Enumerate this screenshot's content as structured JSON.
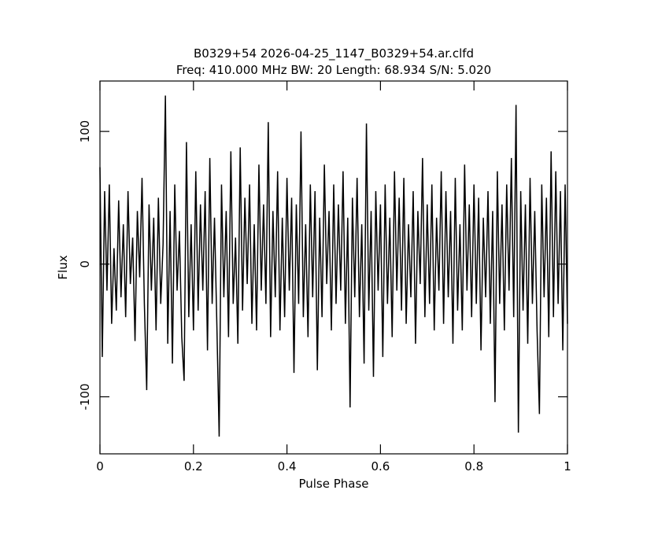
{
  "chart_data": {
    "type": "line",
    "title": "B0329+54 2026-04-25_1147_B0329+54.ar.clfd",
    "subtitle": "Freq: 410.000 MHz BW: 20 Length: 68.934 S/N: 5.020",
    "x_label": "Pulse Phase",
    "y_label": "Flux",
    "xlim": [
      0,
      1
    ],
    "xticks": [
      0,
      0.2,
      0.4,
      0.6,
      0.8,
      1
    ],
    "ylim": [
      -143,
      138
    ],
    "yticks": [
      -100,
      0,
      100
    ],
    "x": [
      0,
      0.005,
      0.01,
      0.015,
      0.02,
      0.025,
      0.03,
      0.035,
      0.04,
      0.045,
      0.05,
      0.055,
      0.06,
      0.065,
      0.07,
      0.075,
      0.08,
      0.085,
      0.09,
      0.095,
      0.1,
      0.105,
      0.11,
      0.115,
      0.12,
      0.125,
      0.13,
      0.135,
      0.14,
      0.145,
      0.15,
      0.155,
      0.16,
      0.165,
      0.17,
      0.175,
      0.18,
      0.185,
      0.19,
      0.195,
      0.2,
      0.205,
      0.21,
      0.215,
      0.22,
      0.225,
      0.23,
      0.235,
      0.24,
      0.245,
      0.25,
      0.255,
      0.26,
      0.265,
      0.27,
      0.275,
      0.28,
      0.285,
      0.29,
      0.295,
      0.3,
      0.305,
      0.31,
      0.315,
      0.32,
      0.325,
      0.33,
      0.335,
      0.34,
      0.345,
      0.35,
      0.355,
      0.36,
      0.365,
      0.37,
      0.375,
      0.38,
      0.385,
      0.39,
      0.395,
      0.4,
      0.405,
      0.41,
      0.415,
      0.42,
      0.425,
      0.43,
      0.435,
      0.44,
      0.445,
      0.45,
      0.455,
      0.46,
      0.465,
      0.47,
      0.475,
      0.48,
      0.485,
      0.49,
      0.495,
      0.5,
      0.505,
      0.51,
      0.515,
      0.52,
      0.525,
      0.53,
      0.535,
      0.54,
      0.545,
      0.55,
      0.555,
      0.56,
      0.565,
      0.57,
      0.575,
      0.58,
      0.585,
      0.59,
      0.595,
      0.6,
      0.605,
      0.61,
      0.615,
      0.62,
      0.625,
      0.63,
      0.635,
      0.64,
      0.645,
      0.65,
      0.655,
      0.66,
      0.665,
      0.67,
      0.675,
      0.68,
      0.685,
      0.69,
      0.695,
      0.7,
      0.705,
      0.71,
      0.715,
      0.72,
      0.725,
      0.73,
      0.735,
      0.74,
      0.745,
      0.75,
      0.755,
      0.76,
      0.765,
      0.77,
      0.775,
      0.78,
      0.785,
      0.79,
      0.795,
      0.8,
      0.805,
      0.81,
      0.815,
      0.82,
      0.825,
      0.83,
      0.835,
      0.84,
      0.845,
      0.85,
      0.855,
      0.86,
      0.865,
      0.87,
      0.875,
      0.88,
      0.885,
      0.89,
      0.895,
      0.9,
      0.905,
      0.91,
      0.915,
      0.92,
      0.925,
      0.93,
      0.935,
      0.94,
      0.945,
      0.95,
      0.955,
      0.96,
      0.965,
      0.97,
      0.975,
      0.98,
      0.985,
      0.99,
      0.995,
      1
    ],
    "series": [
      {
        "color": "#000000",
        "values": [
          73,
          -70,
          55,
          -20,
          60,
          -45,
          12,
          -35,
          48,
          -25,
          30,
          -40,
          55,
          -15,
          20,
          -58,
          40,
          -10,
          65,
          -30,
          -95,
          45,
          -20,
          35,
          -50,
          50,
          -30,
          15,
          127,
          -60,
          40,
          -75,
          60,
          -20,
          25,
          -55,
          -88,
          92,
          -40,
          30,
          -50,
          70,
          -35,
          45,
          -20,
          55,
          -65,
          80,
          -30,
          35,
          -45,
          -130,
          60,
          -25,
          40,
          -55,
          85,
          -30,
          20,
          -60,
          88,
          -35,
          50,
          -15,
          60,
          -45,
          30,
          -50,
          75,
          -20,
          45,
          -30,
          107,
          -55,
          40,
          -25,
          70,
          -50,
          35,
          -40,
          65,
          -20,
          50,
          -82,
          45,
          -30,
          100,
          -40,
          30,
          -55,
          60,
          -25,
          55,
          -80,
          35,
          -40,
          75,
          -15,
          40,
          -50,
          60,
          -30,
          45,
          -20,
          70,
          -45,
          35,
          -108,
          50,
          -25,
          65,
          -40,
          30,
          -75,
          106,
          -35,
          40,
          -85,
          55,
          -20,
          45,
          -70,
          60,
          -30,
          35,
          -55,
          70,
          -20,
          50,
          -35,
          65,
          -45,
          30,
          -25,
          55,
          -60,
          40,
          -15,
          80,
          -40,
          45,
          -30,
          60,
          -50,
          35,
          -20,
          70,
          -45,
          55,
          -25,
          40,
          -60,
          65,
          -35,
          30,
          -50,
          75,
          -20,
          45,
          -40,
          60,
          -30,
          50,
          -65,
          35,
          -25,
          55,
          -45,
          40,
          -104,
          70,
          -30,
          45,
          -50,
          60,
          -20,
          80,
          -40,
          120,
          -127,
          55,
          -35,
          45,
          -60,
          65,
          -30,
          40,
          -50,
          -113,
          60,
          -25,
          50,
          -55,
          85,
          -40,
          70,
          -30,
          55,
          -65,
          60,
          -45
        ]
      }
    ]
  }
}
